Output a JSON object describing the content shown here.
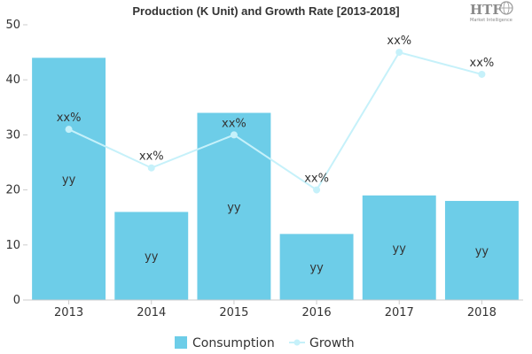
{
  "chart_data": {
    "type": "bar",
    "title": "Production (K Unit) and Growth Rate [2013-2018]",
    "categories": [
      "2013",
      "2014",
      "2015",
      "2016",
      "2017",
      "2018"
    ],
    "ylim": [
      0,
      50
    ],
    "yticks": [
      "0",
      "10",
      "20",
      "30",
      "40",
      "50"
    ],
    "grid": false,
    "legend_position": "bottom",
    "series": [
      {
        "name": "Consumption",
        "type": "bar",
        "color": "#6dcde8",
        "values": [
          44,
          16,
          34,
          12,
          19,
          18
        ],
        "labels": [
          "yy",
          "yy",
          "yy",
          "yy",
          "yy",
          "yy"
        ]
      },
      {
        "name": "Growth",
        "type": "line",
        "color": "#c6f1fa",
        "values": [
          31,
          24,
          30,
          20,
          45,
          41
        ],
        "labels": [
          "xx%",
          "xx%",
          "xx%",
          "xx%",
          "xx%",
          "xx%"
        ]
      }
    ]
  },
  "logo": {
    "text": "HTF",
    "subtext": "Market Intelligence",
    "icon": "globe-icon"
  }
}
